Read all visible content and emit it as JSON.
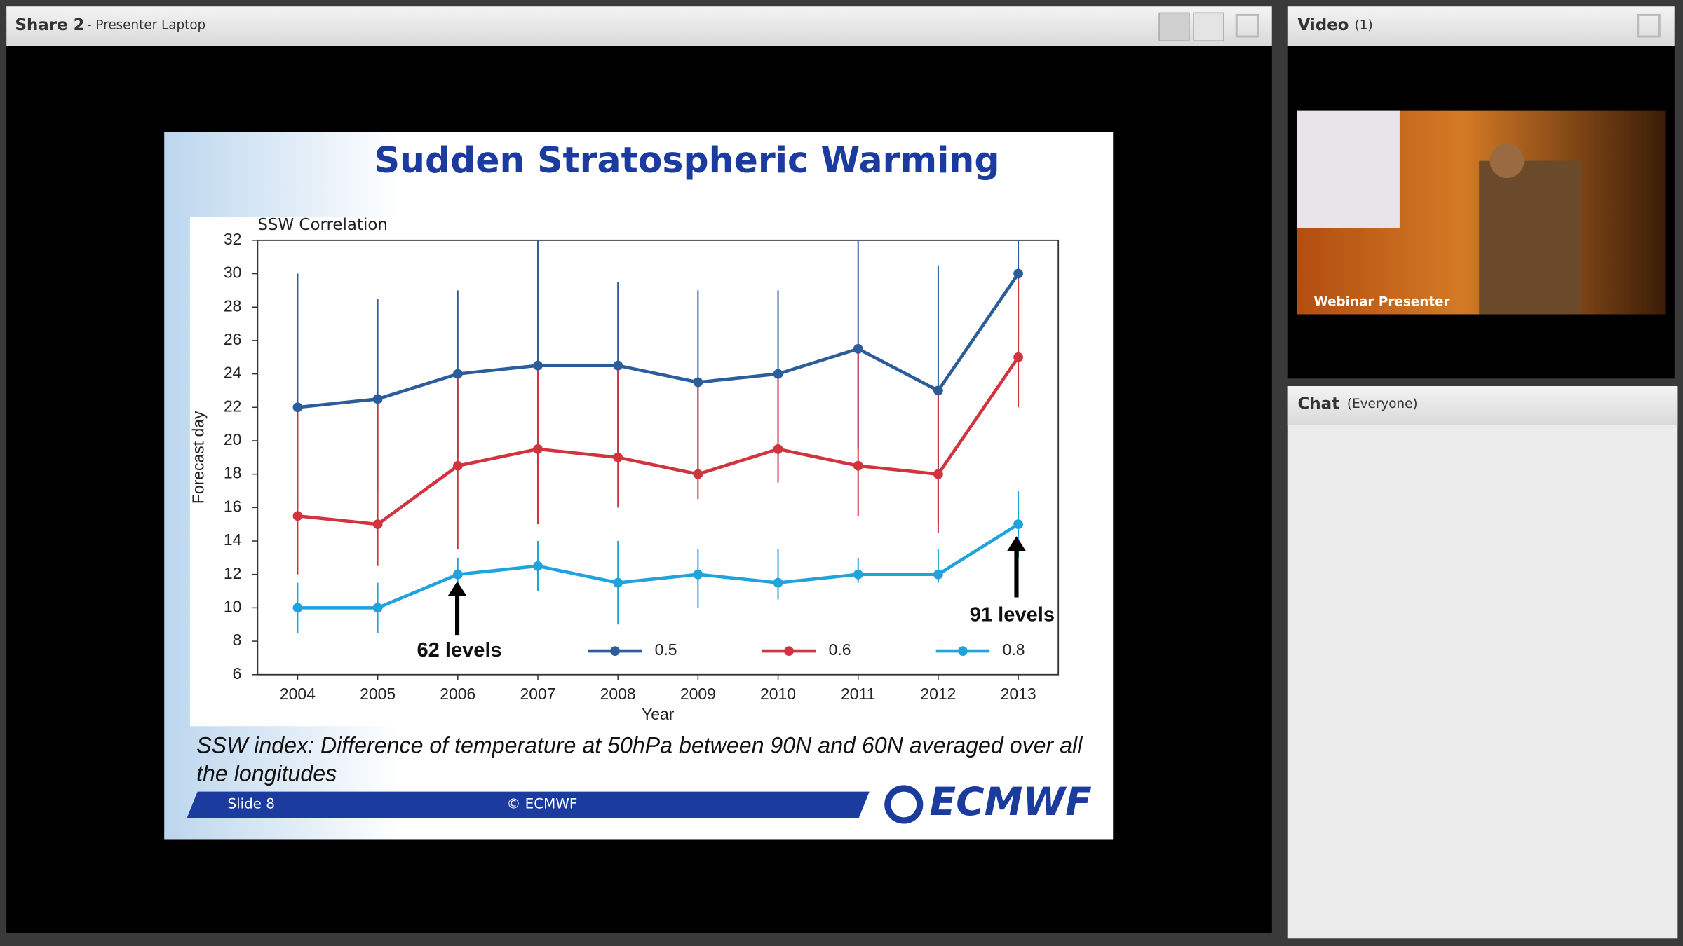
{
  "share_pod": {
    "title": "Share 2",
    "subtitle": "- Presenter Laptop"
  },
  "slide": {
    "title": "Sudden Stratospheric Warming",
    "chart_data": {
      "type": "line",
      "title": "SSW Correlation",
      "x_label": "Year",
      "y_label": "Forecast day",
      "x": [
        2004,
        2005,
        2006,
        2007,
        2008,
        2009,
        2010,
        2011,
        2012,
        2013
      ],
      "xlim": [
        2003.5,
        2013.5
      ],
      "xticks": [
        2004,
        2005,
        2006,
        2007,
        2008,
        2009,
        2010,
        2011,
        2012,
        2013
      ],
      "ylim": [
        6,
        32
      ],
      "yticks": [
        6,
        8,
        10,
        12,
        14,
        16,
        18,
        20,
        22,
        24,
        26,
        28,
        30,
        32
      ],
      "legend": "lower center",
      "series": [
        {
          "name": "0.5",
          "color": "#2b5d9b",
          "values": [
            22,
            22.5,
            24,
            24.5,
            24.5,
            23.5,
            24,
            25.5,
            23,
            30
          ],
          "low": [
            16,
            17,
            19,
            19,
            19,
            18,
            19,
            19.5,
            15,
            26
          ],
          "high": [
            30,
            28.5,
            29,
            32,
            29.5,
            29,
            29,
            32,
            30.5,
            32
          ]
        },
        {
          "name": "0.6",
          "color": "#d1343f",
          "values": [
            15.5,
            15,
            18.5,
            19.5,
            19,
            18,
            19.5,
            18.5,
            18,
            25
          ],
          "low": [
            12,
            12.5,
            13.5,
            15,
            16,
            16.5,
            17.5,
            15.5,
            14.5,
            22
          ],
          "high": [
            22,
            22.5,
            24,
            24.5,
            24.5,
            23.5,
            24,
            25.5,
            23,
            30
          ]
        },
        {
          "name": "0.8",
          "color": "#1fa3dc",
          "values": [
            10,
            10,
            12,
            12.5,
            11.5,
            12,
            11.5,
            12,
            12,
            15
          ],
          "low": [
            8.5,
            8.5,
            10,
            11,
            9,
            10,
            10.5,
            11.5,
            11.5,
            13
          ],
          "high": [
            11.5,
            11.5,
            13,
            14,
            14,
            13.5,
            13.5,
            13,
            13.5,
            17
          ]
        }
      ],
      "annotations": [
        "62 levels",
        "91 levels"
      ]
    },
    "caption": "SSW index: Difference of temperature at 50hPa between 90N and 60N averaged over all the longitudes",
    "footer": {
      "slide_number": "Slide 8",
      "copyright": "© ECMWF",
      "logo": "ECMWF"
    }
  },
  "video_pod": {
    "title": "Video",
    "count": "(1)",
    "overlay_label": "Webinar Presenter"
  },
  "chat_pod": {
    "title": "Chat",
    "audience": "(Everyone)"
  }
}
